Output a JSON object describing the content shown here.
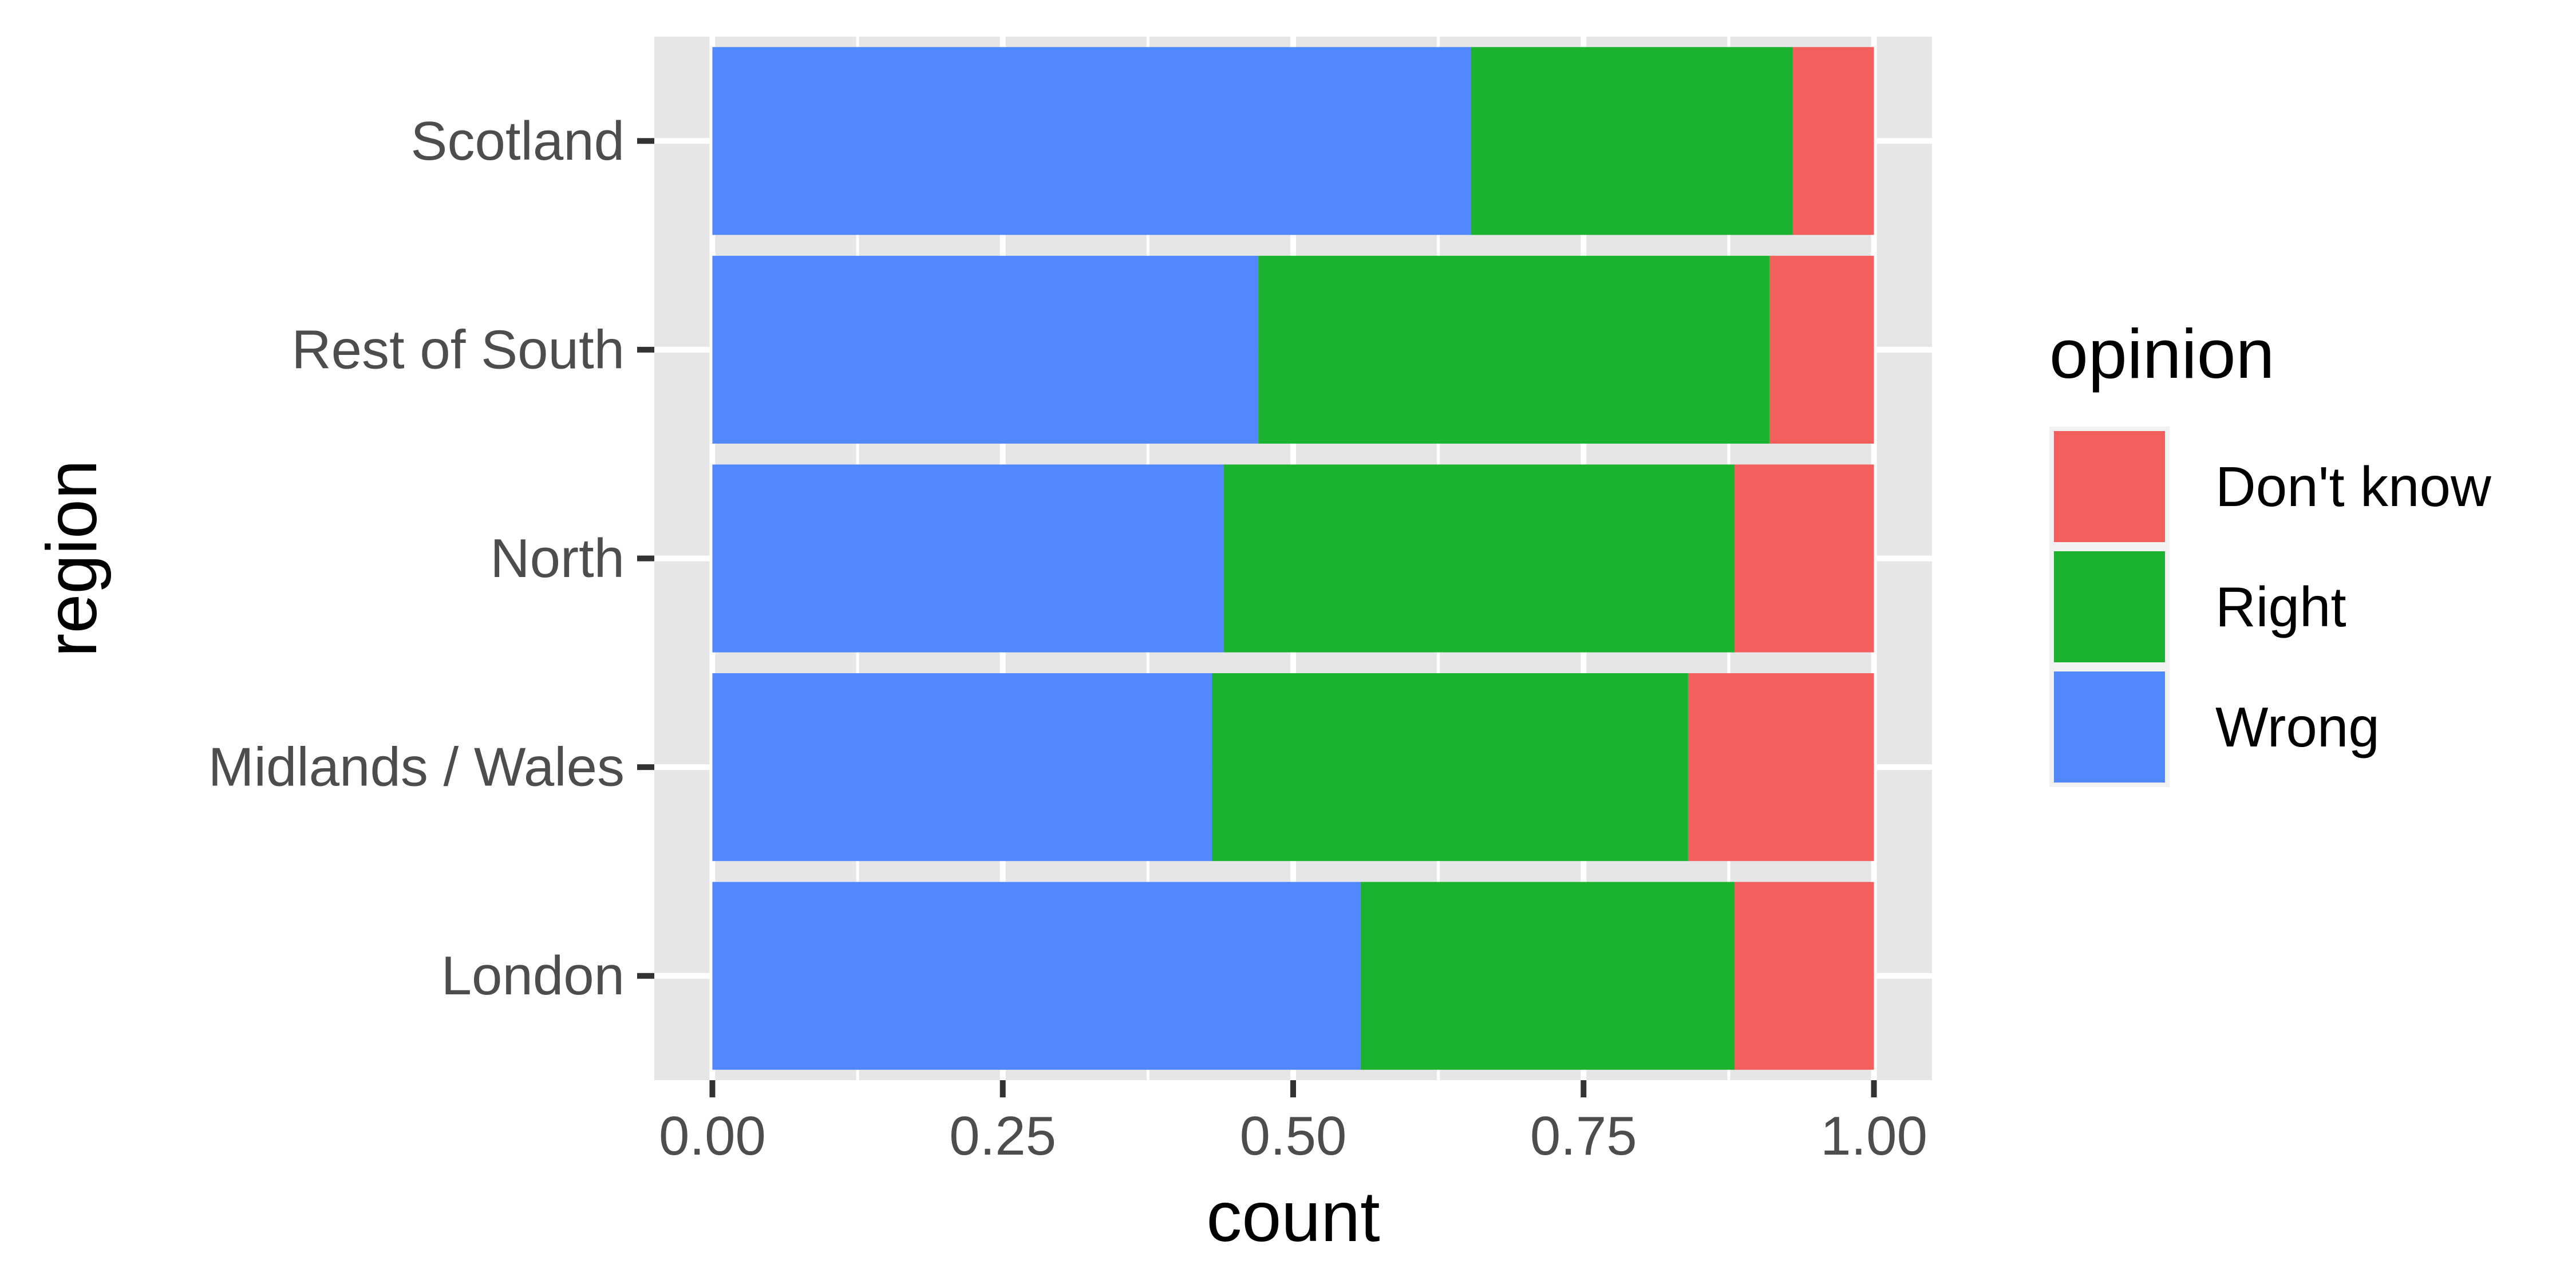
{
  "chart_data": {
    "type": "bar",
    "orientation": "horizontal",
    "stacked": "fill",
    "categories": [
      "Scotland",
      "Rest of South",
      "North",
      "Midlands / Wales",
      "London"
    ],
    "series": [
      {
        "name": "Wrong",
        "color": "#5288FF",
        "values": [
          0.653,
          0.47,
          0.44,
          0.43,
          0.558
        ]
      },
      {
        "name": "Right",
        "color": "#1AB22F",
        "values": [
          0.277,
          0.44,
          0.44,
          0.41,
          0.322
        ]
      },
      {
        "name": "Don't know",
        "color": "#F25F5C",
        "values": [
          0.07,
          0.09,
          0.12,
          0.16,
          0.12
        ]
      }
    ],
    "xlabel": "count",
    "ylabel": "region",
    "xlim": [
      -0.05,
      1.05
    ],
    "x_ticks": [
      "0.00",
      "0.25",
      "0.50",
      "0.75",
      "1.00"
    ],
    "x_tick_values": [
      0,
      0.25,
      0.5,
      0.75,
      1.0
    ],
    "grid": true,
    "legend": {
      "title": "opinion",
      "position": "right",
      "entries": [
        "Don't know",
        "Right",
        "Wrong"
      ]
    },
    "panel_background": "#E6E6E6",
    "gridline_color": "#FFFFFF"
  }
}
